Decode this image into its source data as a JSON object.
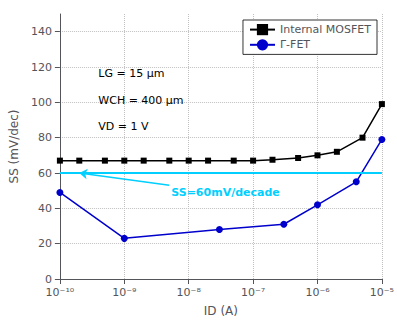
{
  "chart_data": {
    "type": "line",
    "xlabel": "ID (A)",
    "ylabel": "SS (mV/dec)",
    "log": "x",
    "xlim": [
      1e-10,
      1e-05
    ],
    "xticks": [
      {
        "value": 1e-10,
        "label": "10⁻¹⁰"
      },
      {
        "value": 1e-09,
        "label": "10⁻⁹"
      },
      {
        "value": 1e-08,
        "label": "10⁻⁸"
      },
      {
        "value": 1e-07,
        "label": "10⁻⁷"
      },
      {
        "value": 1e-06,
        "label": "10⁻⁶"
      },
      {
        "value": 1e-05,
        "label": "10⁻⁵"
      }
    ],
    "ylim": [
      0,
      150
    ],
    "yticks": [
      0,
      20,
      40,
      60,
      80,
      100,
      120,
      140
    ],
    "grid": true,
    "legend": "upper right",
    "series": [
      {
        "name": "Internal MOSFET",
        "color": "#000000",
        "marker": "square",
        "x": [
          1e-10,
          2e-10,
          5e-10,
          1e-09,
          2e-09,
          5e-09,
          1e-08,
          2e-08,
          5e-08,
          1e-07,
          2e-07,
          5e-07,
          1e-06,
          2e-06,
          5e-06,
          1e-05
        ],
        "values": [
          67,
          67,
          67,
          67,
          67,
          67,
          67,
          67,
          67,
          67,
          67.5,
          68.5,
          70,
          72,
          80,
          99
        ]
      },
      {
        "name": "Γ-FET",
        "color": "#0000CC",
        "marker": "circle",
        "x": [
          1e-10,
          1e-09,
          3e-08,
          3e-07,
          1e-06,
          4e-06,
          1e-05
        ],
        "values": [
          49,
          23,
          28,
          31,
          42,
          55,
          79
        ]
      }
    ],
    "hline": {
      "value": 60,
      "color": "#00CFFF"
    },
    "annotations": [
      {
        "text": "SS=60mV/decade",
        "x": 5e-09,
        "y": 53,
        "arrow_x": 2e-10,
        "arrow_y": 60,
        "color": "#00CFFF"
      }
    ],
    "texts": [
      "LG = 15 μm",
      "WCH = 400 μm",
      "VD = 1 V"
    ]
  }
}
